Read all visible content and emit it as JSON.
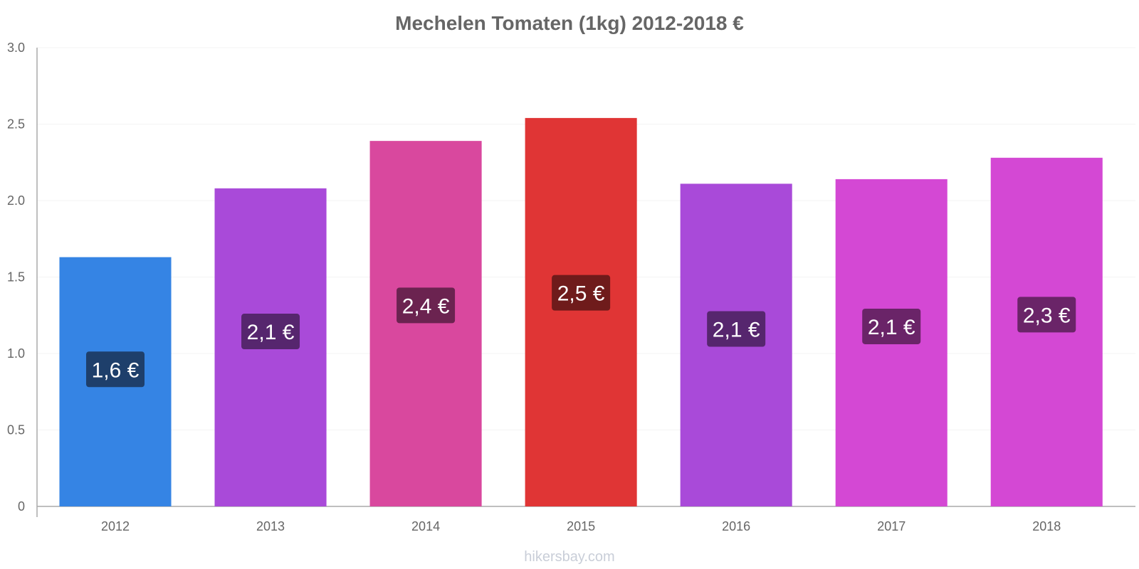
{
  "chart_data": {
    "type": "bar",
    "title": "Mechelen Tomaten (1kg) 2012-2018 €",
    "xlabel": "",
    "ylabel": "",
    "ylim": [
      0,
      3.0
    ],
    "yticks": [
      {
        "value": 0,
        "label": "0"
      },
      {
        "value": 0.5,
        "label": "0.5"
      },
      {
        "value": 1.0,
        "label": "1.0"
      },
      {
        "value": 1.5,
        "label": "1.5"
      },
      {
        "value": 2.0,
        "label": "2.0"
      },
      {
        "value": 2.5,
        "label": "2.5"
      },
      {
        "value": 3.0,
        "label": "3.0"
      }
    ],
    "grid": true,
    "categories": [
      "2012",
      "2013",
      "2014",
      "2015",
      "2016",
      "2017",
      "2018"
    ],
    "values": [
      1.63,
      2.08,
      2.39,
      2.54,
      2.11,
      2.14,
      2.28
    ],
    "data_labels": [
      "1,6 €",
      "2,1 €",
      "2,4 €",
      "2,5 €",
      "2,1 €",
      "2,1 €",
      "2,3 €"
    ],
    "bar_colors": [
      "#3584e4",
      "#a94ad9",
      "#d9489e",
      "#e03535",
      "#a94ad9",
      "#d448d4",
      "#d448d4"
    ],
    "label_colors": [
      "#1e3f6b",
      "#56266e",
      "#6b2350",
      "#6f1b1b",
      "#56266e",
      "#6a2468",
      "#6a2468"
    ]
  },
  "footer": {
    "source": "hikersbay.com"
  }
}
